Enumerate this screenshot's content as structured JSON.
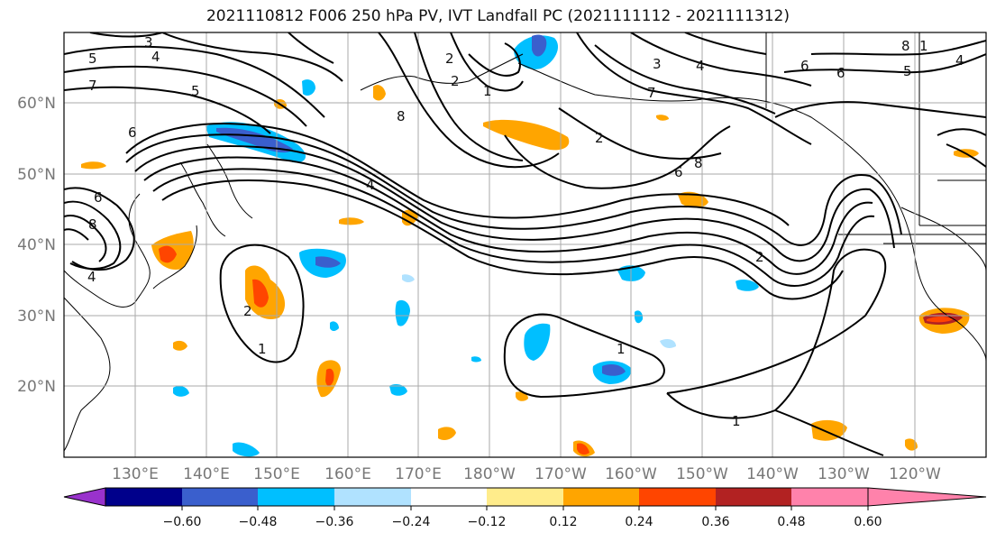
{
  "title": "2021110812 F006 250 hPa PV, IVT Landfall PC (2021111112 - 2021111312)",
  "lat_labels": [
    "60°N",
    "50°N",
    "40°N",
    "30°N",
    "20°N"
  ],
  "lon_labels": [
    "130°E",
    "140°E",
    "150°E",
    "160°E",
    "170°E",
    "180°W",
    "170°W",
    "160°W",
    "150°W",
    "140°W",
    "130°W",
    "120°W"
  ],
  "colorbar": {
    "ticks": [
      "−0.60",
      "−0.48",
      "−0.36",
      "−0.24",
      "−0.12",
      "0.12",
      "0.24",
      "0.36",
      "0.48",
      "0.60"
    ],
    "colors": [
      "#9932cc",
      "#00008b",
      "#3a5fcd",
      "#00bfff",
      "#b0e2ff",
      "#ffffff",
      "#ffec8b",
      "#ffa500",
      "#ff4500",
      "#b22222",
      "#ff82ab"
    ]
  },
  "contour_labels": [
    "3",
    "4",
    "5",
    "7",
    "5",
    "6",
    "6",
    "8",
    "4",
    "2",
    "1",
    "8",
    "2",
    "3",
    "4",
    "7",
    "2",
    "6",
    "8",
    "6",
    "6",
    "5",
    "4",
    "8",
    "1",
    "4",
    "2",
    "1",
    "1",
    "1",
    "2"
  ]
}
